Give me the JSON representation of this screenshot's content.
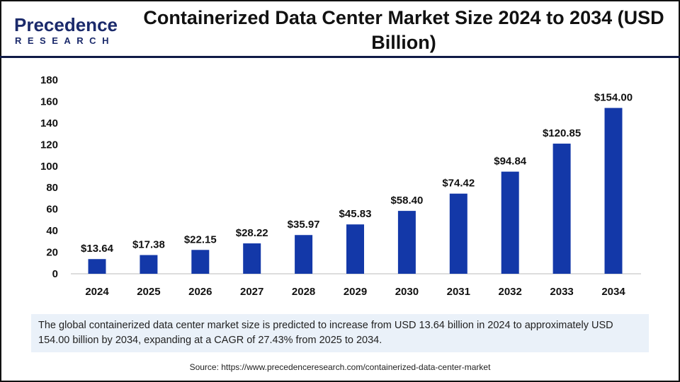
{
  "logo": {
    "text": "Precedence",
    "subtext": "RESEARCH"
  },
  "title": "Containerized Data Center Market Size 2024 to 2034 (USD Billion)",
  "description": "The global containerized data center market size is predicted to increase from USD 13.64 billion in 2024 to approximately USD 154.00 billion by 2034, expanding at a CAGR of 27.43% from 2025 to 2034.",
  "source": "Source: https://www.precedenceresearch.com/containerized-data-center-market",
  "chart_data": {
    "type": "bar",
    "categories": [
      "2024",
      "2025",
      "2026",
      "2027",
      "2028",
      "2029",
      "2030",
      "2031",
      "2032",
      "2033",
      "2034"
    ],
    "values": [
      13.64,
      17.38,
      22.15,
      28.22,
      35.97,
      45.83,
      58.4,
      74.42,
      94.84,
      120.85,
      154.0
    ],
    "data_labels": [
      "$13.64",
      "$17.38",
      "$22.15",
      "$28.22",
      "$35.97",
      "$45.83",
      "$58.40",
      "$74.42",
      "$94.84",
      "$120.85",
      "$154.00"
    ],
    "yticks": [
      0,
      20,
      40,
      60,
      80,
      100,
      120,
      140,
      160,
      180
    ],
    "ylim": [
      0,
      180
    ],
    "grid": false,
    "bar_color": "#1338a8"
  }
}
